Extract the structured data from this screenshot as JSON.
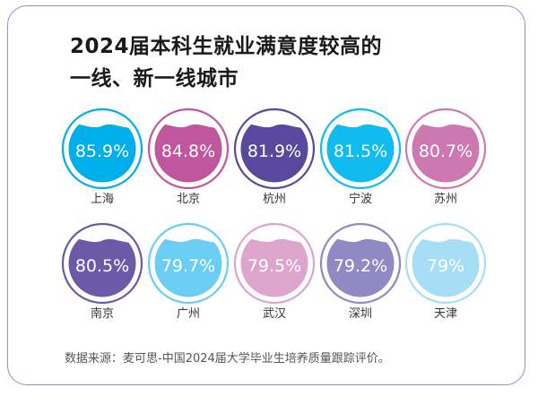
{
  "header": {
    "title_line1": "2024届本科生就业满意度较高的",
    "title_line2": "一线、新一线城市"
  },
  "chart_data": {
    "type": "bar",
    "title": "2024届本科生就业满意度较高的一线、新一线城市",
    "categories": [
      "上海",
      "北京",
      "杭州",
      "宁波",
      "苏州",
      "南京",
      "广州",
      "武汉",
      "深圳",
      "天津"
    ],
    "values": [
      85.9,
      84.8,
      81.9,
      81.5,
      80.7,
      80.5,
      79.7,
      79.5,
      79.2,
      79
    ],
    "value_labels": [
      "85.9%",
      "84.8%",
      "81.9%",
      "81.5%",
      "80.7%",
      "80.5%",
      "79.7%",
      "79.5%",
      "79.2%",
      "79%"
    ],
    "unit": "%",
    "colors": {
      "fills": [
        "#00aeea",
        "#c0569d",
        "#58489e",
        "#10bcef",
        "#cd78b1",
        "#6c5aa9",
        "#6bcdf4",
        "#dea5cc",
        "#9189c4",
        "#a6def6"
      ],
      "rings": [
        "#00aeea",
        "#c0569d",
        "#58489e",
        "#10bcef",
        "#cd78b1",
        "#6c5aa9",
        "#6bcdf4",
        "#dea5cc",
        "#9189c4",
        "#a6def6"
      ]
    },
    "legend": "none",
    "grid": false
  },
  "footer": {
    "source": "数据来源：麦可思-中国2024届大学毕业生培养质量跟踪评价。"
  }
}
